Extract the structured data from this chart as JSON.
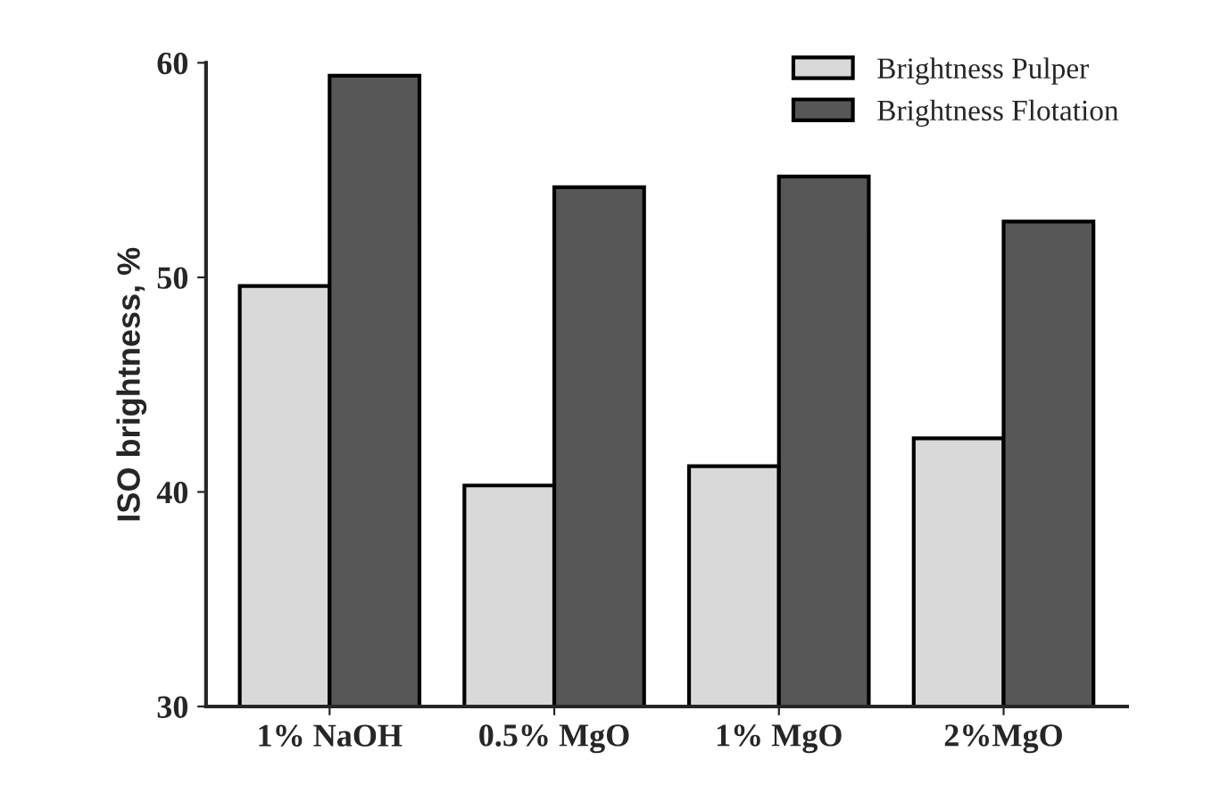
{
  "chart_data": {
    "type": "bar",
    "ylabel": "ISO brightness, %",
    "categories": [
      "1% NaOH",
      "0.5% MgO",
      "1% MgO",
      "2%MgO"
    ],
    "series": [
      {
        "name": "Brightness Pulper",
        "color": "#d9d9d9",
        "values": [
          49.6,
          40.3,
          41.2,
          42.5
        ]
      },
      {
        "name": "Brightness Flotation",
        "color": "#575757",
        "values": [
          59.4,
          54.2,
          54.7,
          52.6
        ]
      }
    ],
    "ylim": [
      30,
      60
    ],
    "yticks": [
      30,
      40,
      50,
      60
    ],
    "grid": false,
    "legend": "top right"
  }
}
